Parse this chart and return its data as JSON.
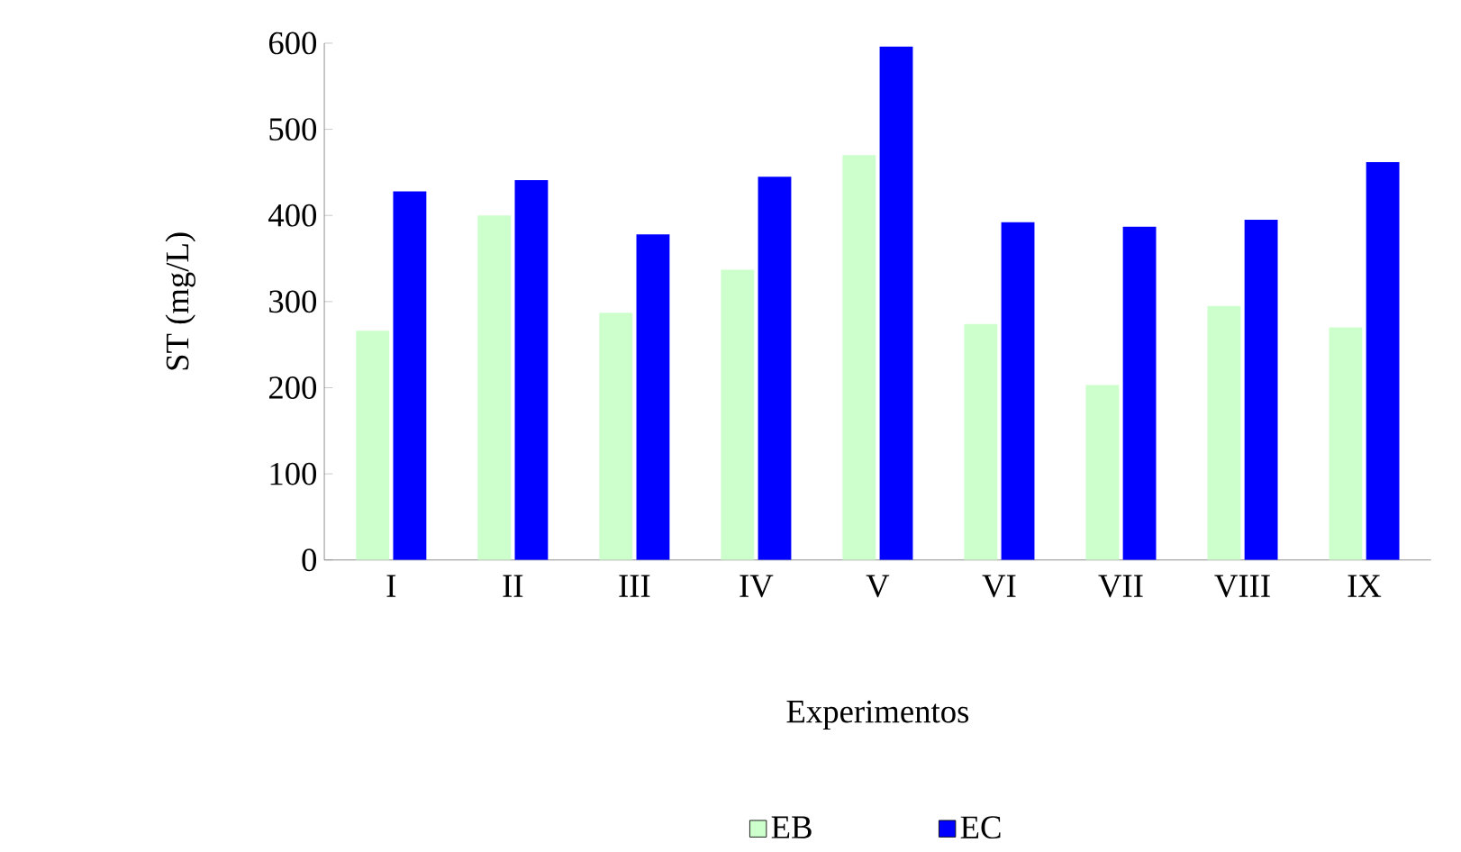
{
  "chart_data": {
    "type": "bar",
    "xlabel": "Experimentos",
    "ylabel": "ST (mg/L)",
    "categories": [
      "I",
      "II",
      "III",
      "IV",
      "V",
      "VI",
      "VII",
      "VIII",
      "IX"
    ],
    "series": [
      {
        "name": "EB",
        "color": "#ccffcc",
        "values": [
          266,
          400,
          287,
          337,
          470,
          274,
          203,
          295,
          270
        ]
      },
      {
        "name": "EC",
        "color": "#0000ff",
        "values": [
          428,
          441,
          378,
          445,
          596,
          392,
          387,
          395,
          462
        ]
      }
    ],
    "ylim": [
      0,
      600
    ],
    "yticks": [
      0,
      100,
      200,
      300,
      400,
      500,
      600
    ],
    "legend": "bottom"
  }
}
